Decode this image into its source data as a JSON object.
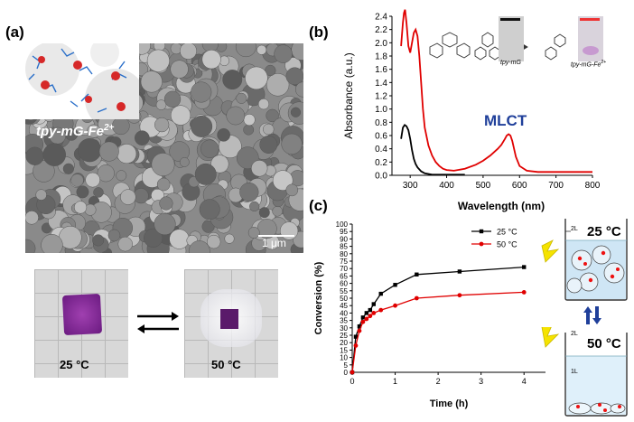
{
  "panels": {
    "a": {
      "label": "(a)",
      "sem_inset_label": "tpy-mG-Fe",
      "sem_inset_sup": "2+",
      "scale_bar": "1 μm",
      "photo_left_label": "25 °C",
      "photo_right_label": "50 °C"
    },
    "b": {
      "label": "(b)",
      "annotation": "MLCT",
      "struct_left": "tpy-mG",
      "struct_right": "tpy-mG-Fe",
      "struct_right_sup": "2+"
    },
    "c": {
      "label": "(c)",
      "beaker_top_temp": "25 °C",
      "beaker_bottom_temp": "50 °C",
      "beaker_top_vol": "2L",
      "beaker_bottom_vol": "2L",
      "beaker_bottom_vol2": "1L"
    }
  },
  "chart_data": [
    {
      "type": "line",
      "id": "b",
      "title": "",
      "xlabel": "Wavelength (nm)",
      "ylabel": "Absorbance (a.u.)",
      "xlim": [
        250,
        800
      ],
      "ylim": [
        0,
        2.4
      ],
      "xticks": [
        300,
        400,
        500,
        600,
        700,
        800
      ],
      "yticks": [
        0.0,
        0.2,
        0.4,
        0.6,
        0.8,
        1.0,
        1.2,
        1.4,
        1.6,
        1.8,
        2.0,
        2.2,
        2.4
      ],
      "ytick_labels": [
        "0.0",
        "0.2",
        "0.4",
        "0.6",
        "0.8",
        "1.0",
        "1.2",
        "1.4",
        "1.6",
        "1.8",
        "2.0",
        "2.2",
        "2.4"
      ],
      "series": [
        {
          "name": "tpy-mG",
          "color": "#000000",
          "x": [
            275,
            280,
            285,
            290,
            295,
            300,
            305,
            310,
            315,
            320,
            330,
            340,
            350,
            360,
            380,
            400,
            450
          ],
          "y": [
            0.55,
            0.72,
            0.76,
            0.74,
            0.68,
            0.55,
            0.38,
            0.25,
            0.17,
            0.12,
            0.06,
            0.03,
            0.02,
            0.01,
            0.01,
            0.01,
            0.01
          ]
        },
        {
          "name": "tpy-mG-Fe2+",
          "color": "#e00000",
          "x": [
            275,
            280,
            283,
            286,
            290,
            295,
            300,
            305,
            310,
            315,
            320,
            325,
            330,
            335,
            340,
            350,
            360,
            370,
            380,
            390,
            400,
            420,
            450,
            480,
            500,
            520,
            540,
            550,
            560,
            565,
            570,
            575,
            580,
            585,
            590,
            600,
            620,
            650,
            700,
            750,
            800
          ],
          "y": [
            1.95,
            2.3,
            2.45,
            2.5,
            2.3,
            1.95,
            1.85,
            2.0,
            2.15,
            2.2,
            2.1,
            1.8,
            1.4,
            1.0,
            0.72,
            0.45,
            0.3,
            0.2,
            0.14,
            0.1,
            0.08,
            0.07,
            0.1,
            0.16,
            0.22,
            0.3,
            0.4,
            0.46,
            0.55,
            0.6,
            0.62,
            0.6,
            0.52,
            0.4,
            0.28,
            0.14,
            0.07,
            0.05,
            0.05,
            0.05,
            0.05
          ]
        }
      ]
    },
    {
      "type": "line",
      "id": "c",
      "title": "",
      "xlabel": "Time (h)",
      "ylabel": "Conversion (%)",
      "xlim": [
        0,
        4.5
      ],
      "ylim": [
        0,
        100
      ],
      "xticks": [
        0,
        1,
        2,
        3,
        4
      ],
      "yticks": [
        0,
        5,
        10,
        15,
        20,
        25,
        30,
        35,
        40,
        45,
        50,
        55,
        60,
        65,
        70,
        75,
        80,
        85,
        90,
        95,
        100
      ],
      "legend": "top-right",
      "series": [
        {
          "name": "25 °C",
          "color": "#000000",
          "marker": "square",
          "x": [
            0,
            0.083,
            0.167,
            0.25,
            0.333,
            0.417,
            0.5,
            0.667,
            1.0,
            1.5,
            2.5,
            4.0
          ],
          "y": [
            0,
            24,
            31,
            37,
            40,
            42,
            46,
            53,
            59,
            66,
            68,
            71
          ]
        },
        {
          "name": "50 °C",
          "color": "#e00000",
          "marker": "circle",
          "x": [
            0,
            0.083,
            0.167,
            0.25,
            0.333,
            0.417,
            0.5,
            0.667,
            1.0,
            1.5,
            2.5,
            4.0
          ],
          "y": [
            0,
            18,
            28,
            34,
            36,
            38,
            40,
            42,
            45,
            50,
            52,
            54
          ]
        }
      ]
    }
  ]
}
